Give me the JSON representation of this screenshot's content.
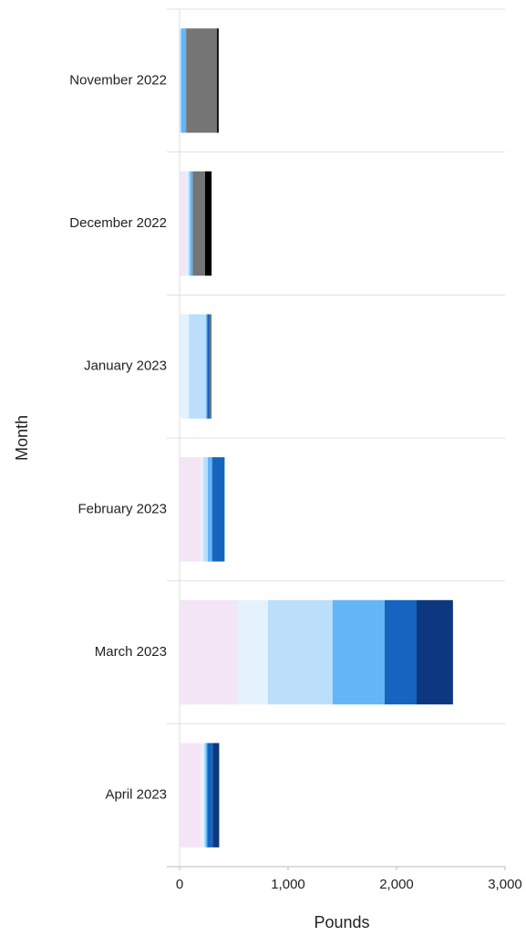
{
  "chart_data": {
    "type": "stacked_bar_horizontal",
    "x_label": "Pounds",
    "y_label": "Month",
    "categories": [
      "November 2022",
      "December 2022",
      "January 2023",
      "February 2023",
      "March 2023",
      "April 2023"
    ],
    "series": [
      {
        "color": "#f3e5f5",
        "values": [
          0,
          55,
          0,
          195,
          540,
          200
        ]
      },
      {
        "color": "#e3f2fd",
        "values": [
          0,
          25,
          85,
          25,
          275,
          25
        ]
      },
      {
        "color": "#bbdefb",
        "values": [
          15,
          15,
          160,
          40,
          595,
          15
        ]
      },
      {
        "color": "#64b5f6",
        "values": [
          45,
          25,
          10,
          40,
          480,
          15
        ]
      },
      {
        "color": "#1565c0",
        "values": [
          0,
          0,
          25,
          115,
          295,
          50
        ]
      },
      {
        "color": "#0d3880",
        "values": [
          0,
          0,
          0,
          0,
          335,
          60
        ]
      },
      {
        "color": "#757575",
        "values": [
          285,
          115,
          15,
          0,
          0,
          0
        ]
      },
      {
        "color": "#000000",
        "values": [
          15,
          60,
          0,
          0,
          0,
          0
        ]
      }
    ],
    "xlim": [
      0,
      3000
    ],
    "xticks": [
      0,
      {
        "value": 1000,
        "label": "1,000"
      },
      {
        "value": 2000,
        "label": "2,000"
      },
      {
        "value": 3000,
        "label": "3,000"
      }
    ]
  }
}
